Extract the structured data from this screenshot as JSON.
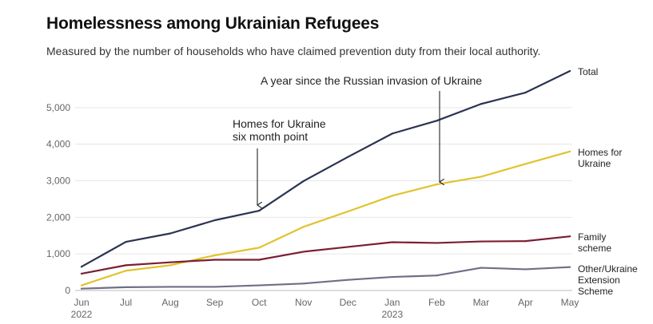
{
  "title": "Homelessness among Ukrainian Refugees",
  "subtitle": "Measured by the number of households who have claimed prevention duty from their local authority.",
  "chart_data": {
    "type": "line",
    "title": "Homelessness among Ukrainian Refugees",
    "subtitle": "Measured by the number of households who have claimed prevention duty from their local authority.",
    "x": [
      "Jun",
      "Jul",
      "Aug",
      "Sep",
      "Oct",
      "Nov",
      "Dec",
      "Jan",
      "Feb",
      "Mar",
      "Apr",
      "May"
    ],
    "x_year_labels": {
      "0": "2022",
      "7": "2023"
    },
    "ylim": [
      0,
      6000
    ],
    "yticks": [
      0,
      1000,
      2000,
      3000,
      4000,
      5000
    ],
    "ytick_labels": [
      "0",
      "1,000",
      "2,000",
      "3,000",
      "4,000",
      "5,000"
    ],
    "grid": "horizontal",
    "series": [
      {
        "name": "Total",
        "color": "#2b3352",
        "values": [
          650,
          1330,
          1560,
          1920,
          2180,
          2990,
          3650,
          4290,
          4640,
          5100,
          5410,
          6000
        ]
      },
      {
        "name": "Homes for Ukraine",
        "color": "#e0c32d",
        "values": [
          140,
          540,
          690,
          960,
          1170,
          1740,
          2160,
          2590,
          2900,
          3110,
          3460,
          3800
        ]
      },
      {
        "name": "Family scheme",
        "color": "#7a1f33",
        "values": [
          460,
          690,
          770,
          840,
          840,
          1060,
          1190,
          1320,
          1300,
          1340,
          1350,
          1480
        ]
      },
      {
        "name": "Other/Ukraine Extension Scheme",
        "color": "#6e6f85",
        "values": [
          50,
          90,
          100,
          100,
          140,
          190,
          290,
          370,
          410,
          620,
          580,
          640
        ]
      }
    ],
    "series_labels": [
      {
        "lines": [
          "Total"
        ]
      },
      {
        "lines": [
          "Homes for",
          "Ukraine"
        ]
      },
      {
        "lines": [
          "Family",
          "scheme"
        ]
      },
      {
        "lines": [
          "Other/Ukraine",
          "Extension",
          "Scheme"
        ]
      }
    ],
    "annotations": [
      {
        "lines": [
          "Homes for Ukraine",
          "six month point"
        ],
        "x": "Oct",
        "series": "Total"
      },
      {
        "lines": [
          "A year since the Russian invasion of Ukraine"
        ],
        "x": "Feb",
        "series": "Homes for Ukraine"
      }
    ]
  }
}
